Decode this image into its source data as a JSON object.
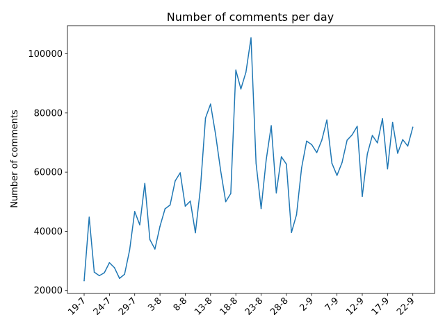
{
  "chart_data": {
    "type": "line",
    "title": "Number of comments per day",
    "xlabel": "",
    "ylabel": "Number of comments",
    "x_tick_labels": [
      "19-7",
      "24-7",
      "29-7",
      "3-8",
      "8-8",
      "13-8",
      "18-8",
      "23-8",
      "28-8",
      "2-9",
      "7-9",
      "12-9",
      "17-9",
      "22-9"
    ],
    "y_tick_labels": [
      "20000",
      "40000",
      "60000",
      "80000",
      "100000"
    ],
    "y_ticks": [
      20000,
      40000,
      60000,
      80000,
      100000
    ],
    "ylim": [
      19000,
      109500
    ],
    "xlim": [
      -3.3,
      69.3
    ],
    "grid": false,
    "series": [
      {
        "color": "#1f77b4",
        "values": [
          23300,
          44800,
          26200,
          25000,
          26000,
          29400,
          27700,
          24100,
          25500,
          33700,
          46700,
          42200,
          56200,
          37200,
          34000,
          41700,
          47600,
          48900,
          57000,
          59800,
          48500,
          50200,
          39500,
          54600,
          78300,
          83000,
          72700,
          60500,
          50000,
          52800,
          94500,
          88100,
          93800,
          105400,
          63000,
          47700,
          64100,
          75700,
          53000,
          65200,
          62700,
          39600,
          45600,
          61400,
          70500,
          69300,
          66600,
          70800,
          77600,
          63000,
          58900,
          63200,
          70800,
          72600,
          75500,
          51800,
          66100,
          72400,
          69900,
          78100,
          61100,
          76800,
          66400,
          71000,
          68800,
          75200
        ]
      }
    ]
  }
}
